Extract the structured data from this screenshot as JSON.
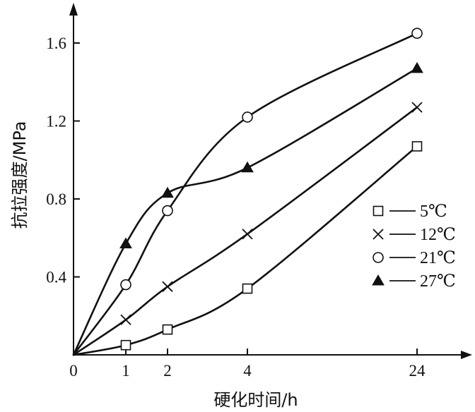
{
  "chart_data": {
    "type": "line",
    "xlabel": "硬化时间/h",
    "ylabel": "抗拉强度/MPa",
    "origin_label": "0",
    "x_ticks": [
      1,
      2,
      4,
      24
    ],
    "y_ticks": [
      0.4,
      0.8,
      1.2,
      1.6
    ],
    "y_tick_labels": [
      "0.4",
      "0.8",
      "1.2",
      "1.6"
    ],
    "ylim": [
      0,
      1.6
    ],
    "legend_position": "right",
    "series": [
      {
        "name": "5℃",
        "marker": "square",
        "points": [
          [
            0,
            0
          ],
          [
            1,
            0.05
          ],
          [
            2,
            0.13
          ],
          [
            4,
            0.34
          ],
          [
            24,
            1.07
          ]
        ]
      },
      {
        "name": "12℃",
        "marker": "cross",
        "points": [
          [
            0,
            0
          ],
          [
            1,
            0.18
          ],
          [
            2,
            0.35
          ],
          [
            4,
            0.62
          ],
          [
            24,
            1.27
          ]
        ]
      },
      {
        "name": "21℃",
        "marker": "circle",
        "points": [
          [
            0,
            0
          ],
          [
            1,
            0.36
          ],
          [
            2,
            0.74
          ],
          [
            4,
            1.22
          ],
          [
            24,
            1.65
          ]
        ]
      },
      {
        "name": "27℃",
        "marker": "triangle",
        "points": [
          [
            0,
            0
          ],
          [
            1,
            0.57
          ],
          [
            2,
            0.83
          ],
          [
            4,
            0.96
          ],
          [
            24,
            1.47
          ]
        ]
      }
    ]
  }
}
